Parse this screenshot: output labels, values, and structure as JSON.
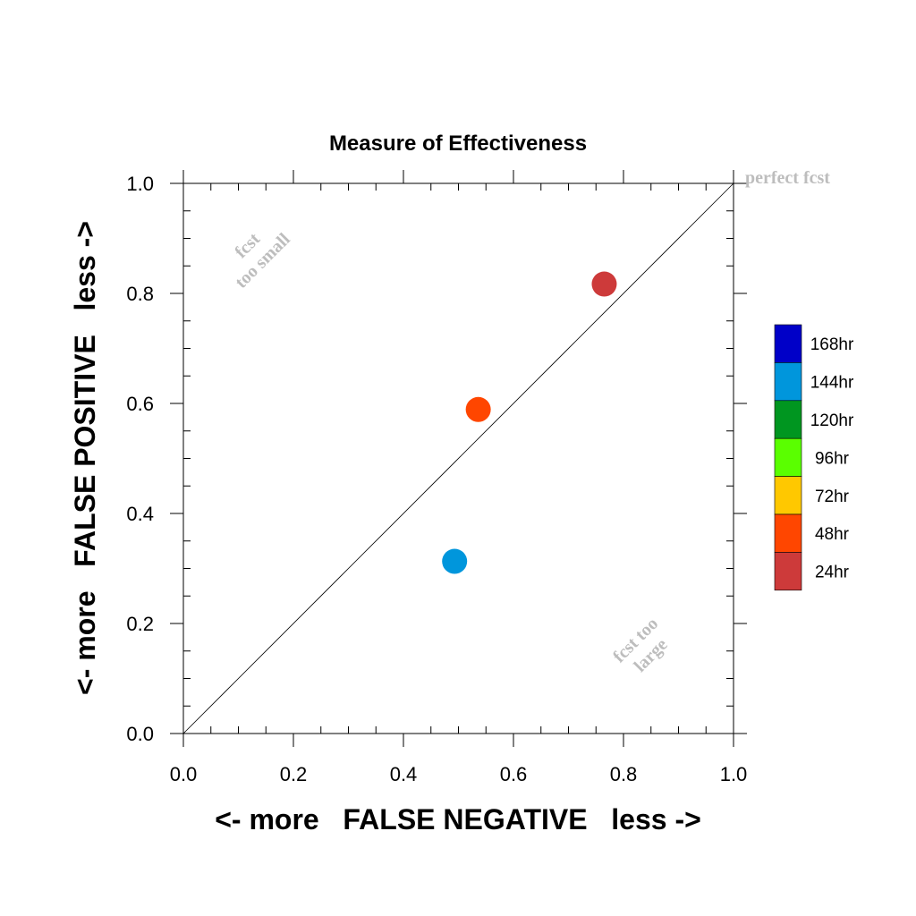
{
  "chart_data": {
    "type": "scatter",
    "title": "Measure of Effectiveness",
    "xlabel": "<- more   FALSE NEGATIVE   less ->",
    "ylabel": "<- more   FALSE POSITIVE   less ->",
    "xlim": [
      0,
      1
    ],
    "ylim": [
      0,
      1
    ],
    "x_ticks": [
      "0.0",
      "0.2",
      "0.4",
      "0.6",
      "0.8",
      "1.0"
    ],
    "y_ticks": [
      "0.0",
      "0.2",
      "0.4",
      "0.6",
      "0.8",
      "1.0"
    ],
    "grid": false,
    "reference_line": {
      "from": [
        0,
        0
      ],
      "to": [
        1,
        1
      ]
    },
    "annotations": {
      "perfect": "perfect fcst",
      "too_small_1": "fcst",
      "too_small_2": "too small",
      "too_large_1": "fcst too",
      "too_large_2": "large"
    },
    "legend": {
      "position": "right",
      "entries": [
        {
          "label": "168hr",
          "color": "#0000c8"
        },
        {
          "label": "144hr",
          "color": "#0096dc"
        },
        {
          "label": "120hr",
          "color": "#009620"
        },
        {
          "label": "96hr",
          "color": "#5aff00"
        },
        {
          "label": "72hr",
          "color": "#ffc800"
        },
        {
          "label": "48hr",
          "color": "#ff4600"
        },
        {
          "label": "24hr",
          "color": "#cd3a3a"
        }
      ]
    },
    "points": [
      {
        "lead": "24hr",
        "x": 0.765,
        "y": 0.817,
        "color": "#cd3a3a"
      },
      {
        "lead": "48hr",
        "x": 0.536,
        "y": 0.589,
        "color": "#ff4600"
      },
      {
        "lead": "144hr",
        "x": 0.493,
        "y": 0.313,
        "color": "#0096dc"
      }
    ]
  }
}
